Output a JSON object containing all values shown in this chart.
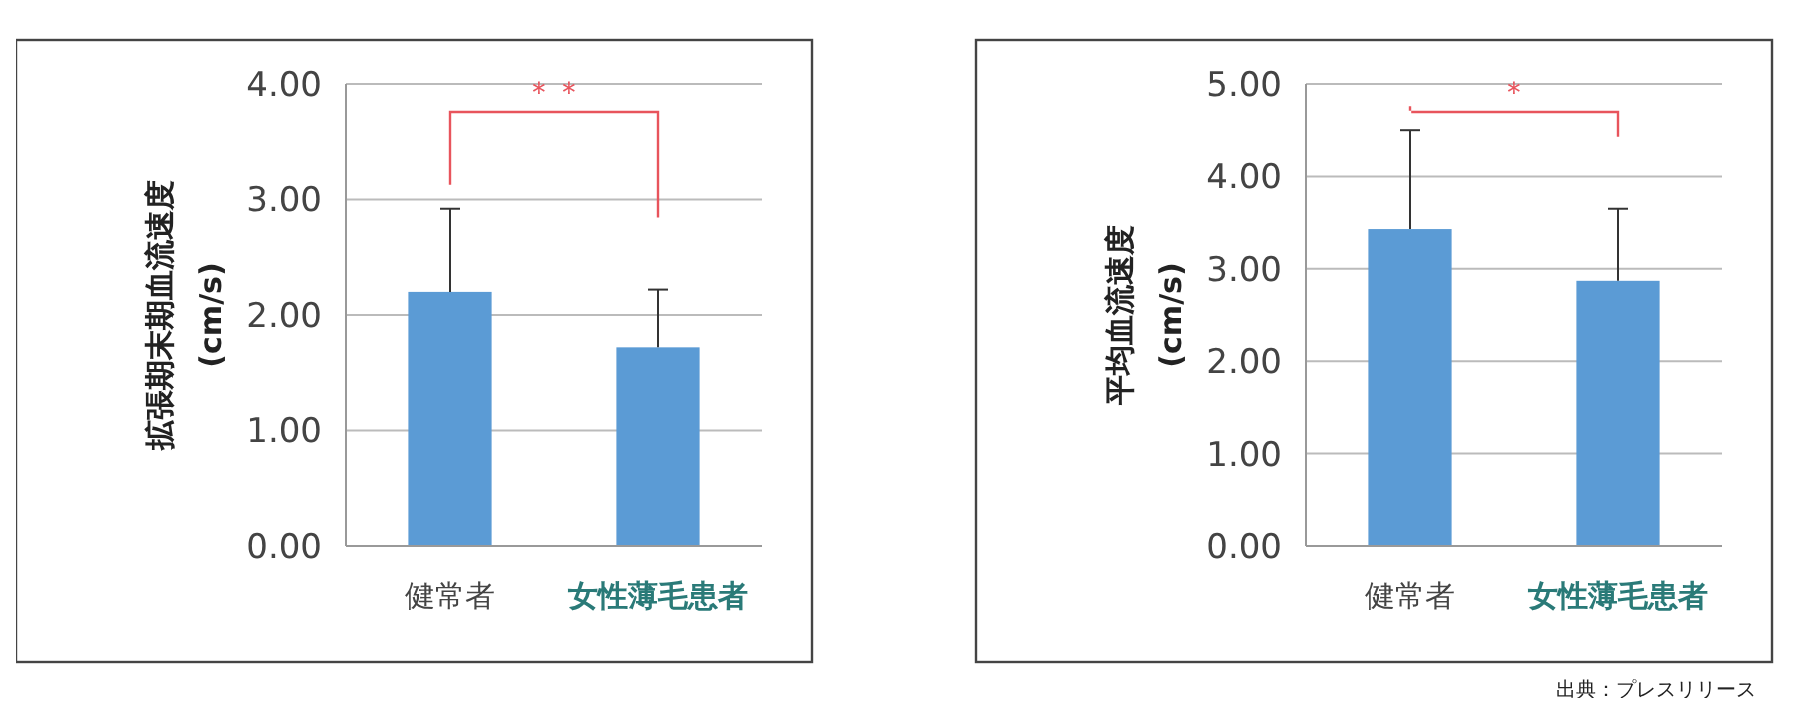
{
  "chart_data": [
    {
      "type": "bar",
      "ylabel": "拡張期末期血流速度\n(cm/s)",
      "categories": [
        "健常者",
        "女性薄毛患者"
      ],
      "values": [
        2.2,
        1.72
      ],
      "errors": [
        [
          2.2,
          2.92
        ],
        [
          1.72,
          2.22
        ]
      ],
      "color": "#5b9bd5",
      "ylim": [
        0,
        4
      ],
      "yticks": [
        {
          "value": 0,
          "label": "0.00"
        },
        {
          "value": 1,
          "label": "1.00"
        },
        {
          "value": 2,
          "label": "2.00"
        },
        {
          "value": 3,
          "label": "3.00"
        },
        {
          "value": 4,
          "label": "4.00"
        }
      ],
      "grid": "y",
      "annotations": [
        "＊＊"
      ]
    },
    {
      "type": "bar",
      "ylabel": "平均血流速度\n(cm/s)",
      "categories": [
        "健常者",
        "女性薄毛患者"
      ],
      "values": [
        3.43,
        2.87
      ],
      "errors": [
        [
          3.43,
          4.5
        ],
        [
          2.87,
          3.65
        ]
      ],
      "color": "#5b9bd5",
      "ylim": [
        0,
        5
      ],
      "yticks": [
        {
          "value": 0,
          "label": "0.00"
        },
        {
          "value": 1,
          "label": "1.00"
        },
        {
          "value": 2,
          "label": "2.00"
        },
        {
          "value": 3,
          "label": "3.00"
        },
        {
          "value": 4,
          "label": "4.00"
        },
        {
          "value": 5,
          "label": "5.00"
        }
      ],
      "grid": "y",
      "annotations": [
        "＊",
        "出典：プレスリリース"
      ]
    }
  ]
}
